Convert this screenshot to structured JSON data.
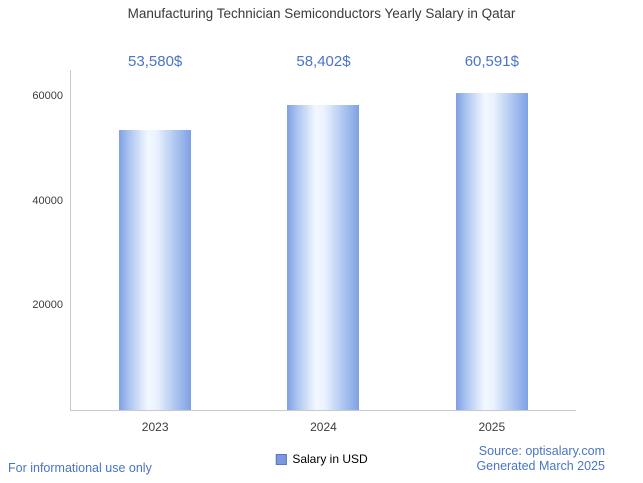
{
  "footer": {
    "informational": "For informational use only",
    "source": "Source: optisalary.com",
    "generated": "Generated March 2025"
  },
  "colors": {
    "accent_blue": "#4a74c9",
    "bar_fill_edge": "#7fa0e4",
    "bar_fill_center": "#f3f8ff",
    "axis_line": "#c9c9c9",
    "title_text": "#3a3a3a"
  },
  "chart_data": {
    "type": "bar",
    "title": "Manufacturing Technician Semiconductors Yearly Salary in Qatar",
    "categories": [
      "2023",
      "2024",
      "2025"
    ],
    "values": [
      53580,
      58402,
      60591
    ],
    "value_labels": [
      "53,580$",
      "58,402$",
      "60,591$"
    ],
    "xlabel": "",
    "ylabel": "",
    "ylim": [
      0,
      65000
    ],
    "yticks": [
      20000,
      40000,
      60000
    ],
    "grid": false,
    "legend": "Salary in USD",
    "legend_position": "bottom"
  }
}
